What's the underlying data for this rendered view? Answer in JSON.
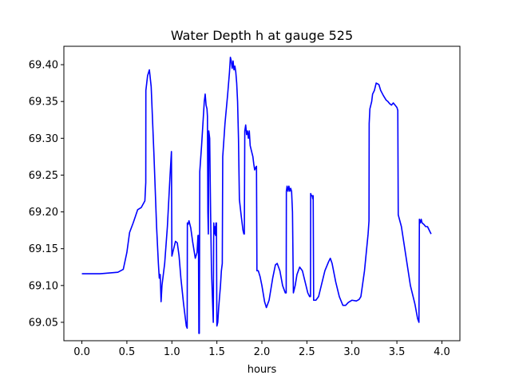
{
  "chart_data": {
    "type": "line",
    "title": "Water Depth h at gauge 525",
    "xlabel": "hours",
    "ylabel": "",
    "xlim": [
      -0.2,
      4.2
    ],
    "ylim": [
      69.025,
      69.425
    ],
    "xticks": [
      0.0,
      0.5,
      1.0,
      1.5,
      2.0,
      2.5,
      3.0,
      3.5,
      4.0
    ],
    "xtick_labels": [
      "0.0",
      "0.5",
      "1.0",
      "1.5",
      "2.0",
      "2.5",
      "3.0",
      "3.5",
      "4.0"
    ],
    "yticks": [
      69.05,
      69.1,
      69.15,
      69.2,
      69.25,
      69.3,
      69.35,
      69.4
    ],
    "ytick_labels": [
      "69.05",
      "69.10",
      "69.15",
      "69.20",
      "69.25",
      "69.30",
      "69.35",
      "69.40"
    ],
    "grid": false,
    "color": "#0000ff",
    "series": [
      {
        "points": [
          [
            0.0,
            69.116
          ],
          [
            0.2,
            69.116
          ],
          [
            0.4,
            69.118
          ],
          [
            0.46,
            69.122
          ],
          [
            0.5,
            69.145
          ],
          [
            0.53,
            69.172
          ],
          [
            0.57,
            69.185
          ],
          [
            0.62,
            69.203
          ],
          [
            0.66,
            69.206
          ],
          [
            0.7,
            69.215
          ],
          [
            0.71,
            69.24
          ],
          [
            0.711,
            69.365
          ],
          [
            0.73,
            69.385
          ],
          [
            0.75,
            69.393
          ],
          [
            0.77,
            69.37
          ],
          [
            0.8,
            69.28
          ],
          [
            0.83,
            69.18
          ],
          [
            0.85,
            69.13
          ],
          [
            0.86,
            69.11
          ],
          [
            0.87,
            69.115
          ],
          [
            0.88,
            69.078
          ],
          [
            0.89,
            69.1
          ],
          [
            0.92,
            69.13
          ],
          [
            0.95,
            69.18
          ],
          [
            0.98,
            69.25
          ],
          [
            0.995,
            69.282
          ],
          [
            1.0,
            69.14
          ],
          [
            1.02,
            69.15
          ],
          [
            1.04,
            69.16
          ],
          [
            1.06,
            69.158
          ],
          [
            1.08,
            69.14
          ],
          [
            1.1,
            69.11
          ],
          [
            1.13,
            69.075
          ],
          [
            1.16,
            69.045
          ],
          [
            1.17,
            69.042
          ],
          [
            1.172,
            69.185
          ],
          [
            1.18,
            69.183
          ],
          [
            1.19,
            69.188
          ],
          [
            1.21,
            69.178
          ],
          [
            1.23,
            69.16
          ],
          [
            1.26,
            69.137
          ],
          [
            1.28,
            69.145
          ],
          [
            1.29,
            69.168
          ],
          [
            1.295,
            69.168
          ],
          [
            1.3,
            69.035
          ],
          [
            1.305,
            69.035
          ],
          [
            1.31,
            69.255
          ],
          [
            1.33,
            69.29
          ],
          [
            1.36,
            69.35
          ],
          [
            1.37,
            69.36
          ],
          [
            1.38,
            69.345
          ],
          [
            1.39,
            69.34
          ],
          [
            1.395,
            69.33
          ],
          [
            1.4,
            69.2
          ],
          [
            1.405,
            69.17
          ],
          [
            1.41,
            69.31
          ],
          [
            1.42,
            69.3
          ],
          [
            1.43,
            69.2
          ],
          [
            1.44,
            69.12
          ],
          [
            1.46,
            69.05
          ],
          [
            1.465,
            69.185
          ],
          [
            1.47,
            69.17
          ],
          [
            1.48,
            69.18
          ],
          [
            1.485,
            69.168
          ],
          [
            1.49,
            69.185
          ],
          [
            1.495,
            69.185
          ],
          [
            1.5,
            69.045
          ],
          [
            1.51,
            69.05
          ],
          [
            1.52,
            69.07
          ],
          [
            1.54,
            69.1
          ],
          [
            1.55,
            69.12
          ],
          [
            1.56,
            69.13
          ],
          [
            1.565,
            69.275
          ],
          [
            1.59,
            69.32
          ],
          [
            1.62,
            69.36
          ],
          [
            1.64,
            69.39
          ],
          [
            1.65,
            69.41
          ],
          [
            1.66,
            69.405
          ],
          [
            1.67,
            69.395
          ],
          [
            1.68,
            69.405
          ],
          [
            1.69,
            69.393
          ],
          [
            1.7,
            69.398
          ],
          [
            1.71,
            69.39
          ],
          [
            1.72,
            69.375
          ],
          [
            1.73,
            69.35
          ],
          [
            1.74,
            69.3
          ],
          [
            1.75,
            69.217
          ],
          [
            1.77,
            69.195
          ],
          [
            1.79,
            69.175
          ],
          [
            1.8,
            69.17
          ],
          [
            1.805,
            69.17
          ],
          [
            1.81,
            69.31
          ],
          [
            1.82,
            69.318
          ],
          [
            1.83,
            69.305
          ],
          [
            1.84,
            69.31
          ],
          [
            1.85,
            69.3
          ],
          [
            1.86,
            69.31
          ],
          [
            1.87,
            69.29
          ],
          [
            1.88,
            69.285
          ],
          [
            1.89,
            69.28
          ],
          [
            1.9,
            69.275
          ],
          [
            1.91,
            69.265
          ],
          [
            1.92,
            69.257
          ],
          [
            1.93,
            69.26
          ],
          [
            1.94,
            69.262
          ],
          [
            1.945,
            69.12
          ],
          [
            1.96,
            69.12
          ],
          [
            1.98,
            69.112
          ],
          [
            2.0,
            69.1
          ],
          [
            2.03,
            69.078
          ],
          [
            2.05,
            69.07
          ],
          [
            2.08,
            69.08
          ],
          [
            2.12,
            69.11
          ],
          [
            2.15,
            69.128
          ],
          [
            2.17,
            69.13
          ],
          [
            2.2,
            69.12
          ],
          [
            2.23,
            69.1
          ],
          [
            2.26,
            69.09
          ],
          [
            2.27,
            69.09
          ],
          [
            2.272,
            69.228
          ],
          [
            2.28,
            69.235
          ],
          [
            2.29,
            69.228
          ],
          [
            2.3,
            69.235
          ],
          [
            2.31,
            69.228
          ],
          [
            2.32,
            69.232
          ],
          [
            2.33,
            69.228
          ],
          [
            2.34,
            69.2
          ],
          [
            2.35,
            69.09
          ],
          [
            2.37,
            69.1
          ],
          [
            2.39,
            69.115
          ],
          [
            2.42,
            69.125
          ],
          [
            2.45,
            69.12
          ],
          [
            2.48,
            69.105
          ],
          [
            2.51,
            69.09
          ],
          [
            2.53,
            69.085
          ],
          [
            2.54,
            69.085
          ],
          [
            2.542,
            69.225
          ],
          [
            2.55,
            69.222
          ],
          [
            2.56,
            69.222
          ],
          [
            2.565,
            69.218
          ],
          [
            2.57,
            69.222
          ],
          [
            2.575,
            69.08
          ],
          [
            2.6,
            69.08
          ],
          [
            2.63,
            69.085
          ],
          [
            2.66,
            69.1
          ],
          [
            2.7,
            69.12
          ],
          [
            2.74,
            69.132
          ],
          [
            2.76,
            69.137
          ],
          [
            2.78,
            69.13
          ],
          [
            2.82,
            69.105
          ],
          [
            2.86,
            69.085
          ],
          [
            2.9,
            69.073
          ],
          [
            2.93,
            69.073
          ],
          [
            2.96,
            69.077
          ],
          [
            3.0,
            69.08
          ],
          [
            3.05,
            69.079
          ],
          [
            3.08,
            69.081
          ],
          [
            3.1,
            69.085
          ],
          [
            3.14,
            69.12
          ],
          [
            3.18,
            69.17
          ],
          [
            3.19,
            69.188
          ],
          [
            3.192,
            69.32
          ],
          [
            3.2,
            69.34
          ],
          [
            3.22,
            69.35
          ],
          [
            3.23,
            69.36
          ],
          [
            3.25,
            69.365
          ],
          [
            3.27,
            69.375
          ],
          [
            3.3,
            69.373
          ],
          [
            3.32,
            69.365
          ],
          [
            3.35,
            69.358
          ],
          [
            3.38,
            69.352
          ],
          [
            3.4,
            69.35
          ],
          [
            3.42,
            69.347
          ],
          [
            3.44,
            69.345
          ],
          [
            3.46,
            69.348
          ],
          [
            3.48,
            69.345
          ],
          [
            3.5,
            69.342
          ],
          [
            3.51,
            69.338
          ],
          [
            3.515,
            69.196
          ],
          [
            3.55,
            69.18
          ],
          [
            3.6,
            69.14
          ],
          [
            3.65,
            69.1
          ],
          [
            3.7,
            69.075
          ],
          [
            3.73,
            69.055
          ],
          [
            3.745,
            69.05
          ],
          [
            3.75,
            69.19
          ],
          [
            3.76,
            69.185
          ],
          [
            3.77,
            69.19
          ],
          [
            3.78,
            69.185
          ],
          [
            3.8,
            69.183
          ],
          [
            3.82,
            69.18
          ],
          [
            3.84,
            69.18
          ],
          [
            3.86,
            69.175
          ],
          [
            3.88,
            69.17
          ]
        ]
      }
    ]
  }
}
